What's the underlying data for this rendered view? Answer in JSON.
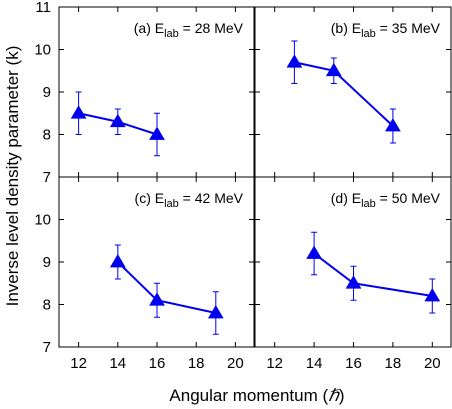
{
  "figure": {
    "ylabel": "Inverse level density parameter (k)",
    "xlabel_text": "Angular momentum (",
    "xlabel_symbol": "ℏ",
    "xlabel_close": ")",
    "colors": {
      "series": "#0000ee",
      "axes": "#000000"
    }
  },
  "chart_data": [
    {
      "type": "line",
      "panel": "(a)",
      "label_prefix": "(a) E",
      "label_sub": "lab",
      "label_suffix": " = 28 MeV",
      "x": [
        12,
        14,
        16
      ],
      "y": [
        8.5,
        8.3,
        8.0
      ],
      "yerr": [
        0.5,
        0.3,
        0.5
      ],
      "xlim": [
        11,
        21
      ],
      "ylim": [
        7,
        11
      ],
      "xticks": [
        12,
        14,
        16,
        18,
        20
      ],
      "yticks": [
        7,
        8,
        9,
        10,
        11
      ]
    },
    {
      "type": "line",
      "panel": "(b)",
      "label_prefix": "(b) E",
      "label_sub": "lab",
      "label_suffix": " = 35 MeV",
      "x": [
        13,
        15,
        18
      ],
      "y": [
        9.7,
        9.5,
        8.2
      ],
      "yerr": [
        0.5,
        0.3,
        0.4
      ],
      "xlim": [
        11,
        21
      ],
      "ylim": [
        7,
        11
      ],
      "xticks": [
        12,
        14,
        16,
        18,
        20
      ],
      "yticks": [
        7,
        8,
        9,
        10,
        11
      ]
    },
    {
      "type": "line",
      "panel": "(c)",
      "label_prefix": "(c) E",
      "label_sub": "lab",
      "label_suffix": " = 42 MeV",
      "x": [
        14,
        16,
        19
      ],
      "y": [
        9.0,
        8.1,
        7.8
      ],
      "yerr": [
        0.4,
        0.4,
        0.5
      ],
      "xlim": [
        11,
        21
      ],
      "ylim": [
        7,
        11
      ],
      "xticks": [
        12,
        14,
        16,
        18,
        20
      ],
      "yticks": [
        7,
        8,
        9,
        10,
        11
      ]
    },
    {
      "type": "line",
      "panel": "(d)",
      "label_prefix": "(d) E",
      "label_sub": "lab",
      "label_suffix": " = 50 MeV",
      "x": [
        14,
        16,
        20
      ],
      "y": [
        9.2,
        8.5,
        8.2
      ],
      "yerr": [
        0.5,
        0.4,
        0.4
      ],
      "xlim": [
        11,
        21
      ],
      "ylim": [
        7,
        11
      ],
      "xticks": [
        12,
        14,
        16,
        18,
        20
      ],
      "yticks": [
        7,
        8,
        9,
        10,
        11
      ]
    }
  ]
}
